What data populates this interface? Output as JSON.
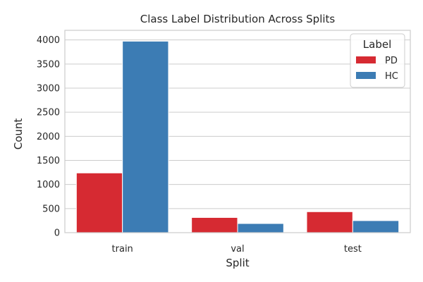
{
  "chart_data": {
    "type": "bar",
    "title": "Class Label Distribution Across Splits",
    "xlabel": "Split",
    "ylabel": "Count",
    "categories": [
      "train",
      "val",
      "test"
    ],
    "ylim": [
      0,
      4200
    ],
    "yticks": [
      0,
      500,
      1000,
      1500,
      2000,
      2500,
      3000,
      3500,
      4000
    ],
    "grid": true,
    "legend": {
      "title": "Label",
      "position": "top-right"
    },
    "series": [
      {
        "name": "PD",
        "color": "#d62a32",
        "values": [
          1240,
          315,
          435
        ]
      },
      {
        "name": "HC",
        "color": "#3c7cb4",
        "values": [
          3975,
          190,
          250
        ]
      }
    ]
  }
}
